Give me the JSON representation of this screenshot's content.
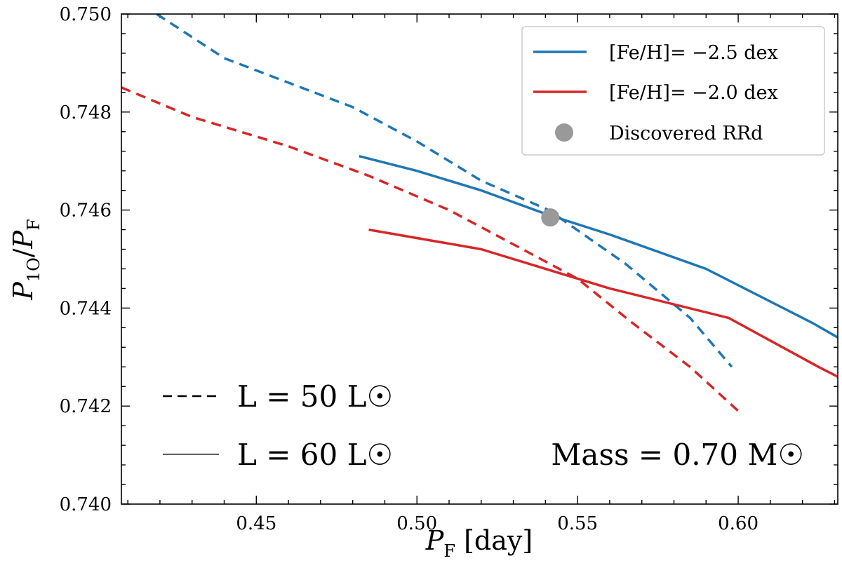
{
  "chart_data": {
    "type": "line",
    "xlim": [
      0.408,
      0.631
    ],
    "ylim": [
      0.74,
      0.75
    ],
    "x_ticks": [
      0.45,
      0.5,
      0.55,
      0.6
    ],
    "x_tick_labels": [
      "0.45",
      "0.50",
      "0.55",
      "0.60"
    ],
    "y_ticks": [
      0.74,
      0.742,
      0.744,
      0.746,
      0.748,
      0.75
    ],
    "y_tick_labels": [
      "0.740",
      "0.742",
      "0.744",
      "0.746",
      "0.748",
      "0.750"
    ],
    "xlabel": "P_F [day]",
    "ylabel": "P_1O / P_F",
    "series": [
      {
        "name": "[Fe/H] = −2.5 dex, L = 50 L☉",
        "color": "#1f77b4",
        "dash": "dashed",
        "x": [
          0.419,
          0.44,
          0.46,
          0.48,
          0.5,
          0.52,
          0.541,
          0.565,
          0.585,
          0.598
        ],
        "y": [
          0.75,
          0.7491,
          0.7486,
          0.7481,
          0.7474,
          0.7466,
          0.746,
          0.7449,
          0.7438,
          0.7428
        ]
      },
      {
        "name": "[Fe/H] = −2.5 dex, L = 60 L☉",
        "color": "#1f77b4",
        "dash": "solid",
        "x": [
          0.482,
          0.5,
          0.52,
          0.541,
          0.56,
          0.59,
          0.623,
          0.631
        ],
        "y": [
          0.7471,
          0.7468,
          0.7464,
          0.7459,
          0.7455,
          0.7448,
          0.7437,
          0.7434
        ]
      },
      {
        "name": "[Fe/H] = −2.0 dex, L = 50 L☉",
        "color": "#d62728",
        "dash": "dashed",
        "x": [
          0.408,
          0.43,
          0.46,
          0.485,
          0.51,
          0.53,
          0.55,
          0.567,
          0.585,
          0.6
        ],
        "y": [
          0.7485,
          0.7479,
          0.7473,
          0.7467,
          0.746,
          0.7453,
          0.7446,
          0.7437,
          0.7428,
          0.7419
        ]
      },
      {
        "name": "[Fe/H] = −2.0 dex, L = 60 L☉",
        "color": "#d62728",
        "dash": "solid",
        "x": [
          0.485,
          0.52,
          0.56,
          0.597,
          0.625,
          0.631
        ],
        "y": [
          0.7456,
          0.7452,
          0.7444,
          0.7438,
          0.7428,
          0.7426
        ]
      }
    ],
    "points": [
      {
        "name": "Discovered RRd",
        "x": 0.5415,
        "y": 0.74585,
        "color": "#999999"
      }
    ],
    "legend": {
      "placement": "top-right",
      "entries": [
        {
          "kind": "line",
          "color": "#1f77b4",
          "label": "[Fe/H]= −2.5 dex"
        },
        {
          "kind": "line",
          "color": "#d62728",
          "label": "[Fe/H]= −2.0 dex"
        },
        {
          "kind": "marker",
          "color": "#999999",
          "label": "Discovered RRd"
        }
      ]
    },
    "annotations": {
      "dashed_label": "L = 50 L☉",
      "solid_label": "L = 60 L☉",
      "mass_label": "Mass = 0.70 M☉"
    }
  }
}
